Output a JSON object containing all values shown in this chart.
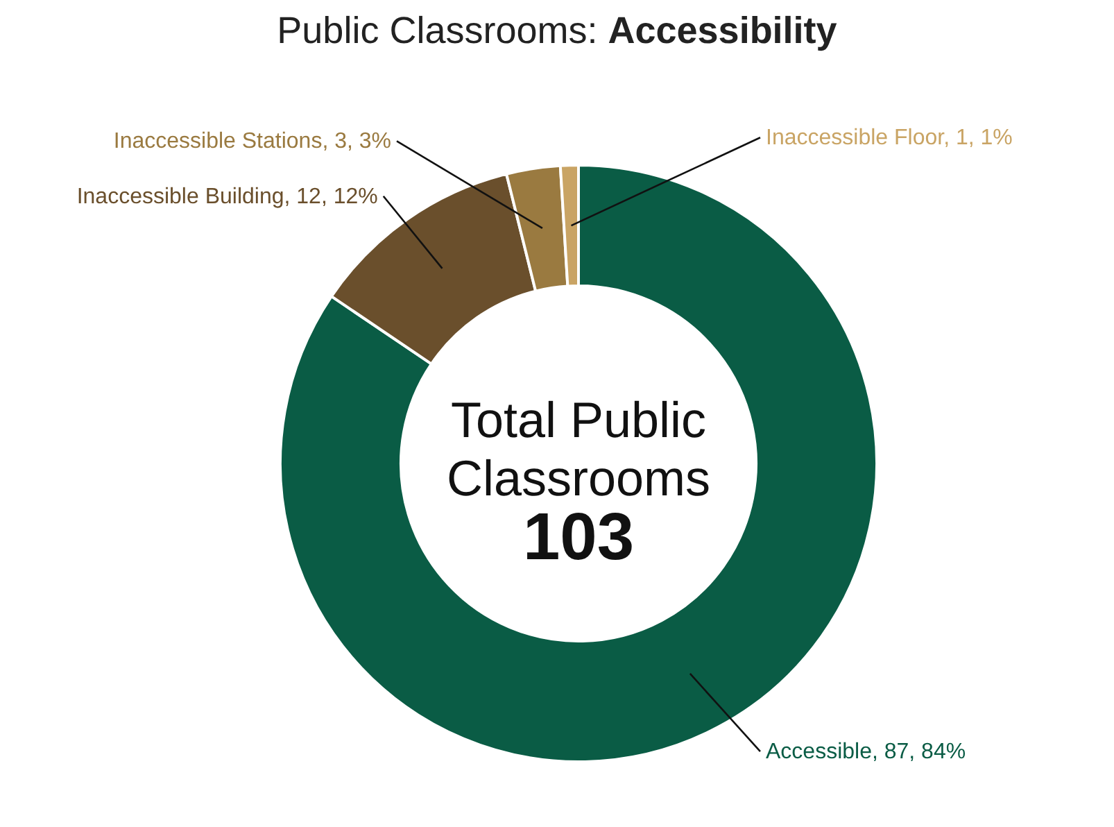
{
  "chart_data": {
    "type": "donut",
    "title": "Public Classrooms: Accessibility",
    "categories": [
      "Accessible",
      "Inaccessible Building",
      "Inaccessible Stations",
      "Inaccessible Floor"
    ],
    "values": [
      87,
      12,
      3,
      1
    ],
    "colors": [
      "#0a5c45",
      "#6a4f2c",
      "#9a7a40",
      "#c9a464"
    ],
    "value_labels": [
      "87, 84%",
      "12, 12%",
      "3, 3%",
      "1, 1%"
    ],
    "annotations": [
      "Total Public Classrooms",
      "103"
    ]
  }
}
